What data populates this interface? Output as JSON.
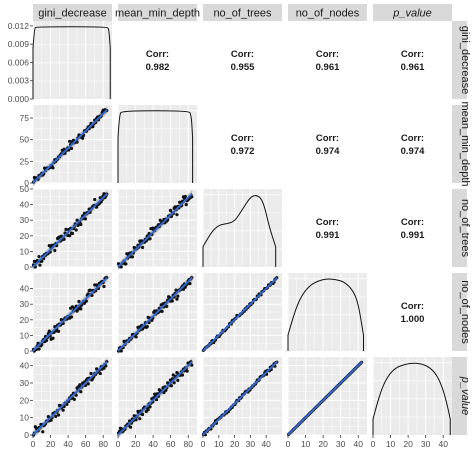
{
  "chart_data": {
    "type": "scatter-matrix",
    "variables": [
      "gini_decrease",
      "mean_min_depth",
      "no_of_trees",
      "no_of_nodes",
      "p_value"
    ],
    "variable_italic": [
      false,
      false,
      false,
      false,
      true
    ],
    "x_ranges": [
      [
        0,
        90
      ],
      [
        0,
        90
      ],
      [
        0,
        50
      ],
      [
        0,
        45
      ],
      [
        0,
        45
      ]
    ],
    "x_ticks": [
      [
        0,
        20,
        40,
        60,
        80
      ],
      [
        0,
        20,
        40,
        60,
        80
      ],
      [
        0,
        10,
        20,
        30,
        40
      ],
      [
        0,
        10,
        20,
        30,
        40
      ],
      [
        0,
        10,
        20,
        30,
        40
      ]
    ],
    "x_tick_labels": [
      [
        "0",
        "20",
        "40",
        "60",
        "80"
      ],
      [
        "0",
        "20",
        "40",
        "60",
        "80"
      ],
      [
        "0",
        "10",
        "20",
        "30",
        "40"
      ],
      [
        "0",
        "10",
        "20",
        "30",
        "40"
      ],
      [
        "0",
        "10",
        "20",
        "30",
        "40"
      ]
    ],
    "y_ranges": [
      [
        0,
        0.0128
      ],
      [
        0,
        90
      ],
      [
        0,
        50
      ],
      [
        0,
        50
      ],
      [
        0,
        45
      ]
    ],
    "y_ticks": [
      [
        0.0,
        0.003,
        0.006,
        0.009,
        0.012
      ],
      [
        0,
        25,
        50,
        75
      ],
      [
        0,
        10,
        20,
        30,
        40,
        50
      ],
      [
        0,
        10,
        20,
        30,
        40
      ],
      [
        0,
        10,
        20,
        30,
        40
      ]
    ],
    "y_tick_labels": [
      [
        "0.000",
        "0.003",
        "0.006",
        "0.009",
        "0.012"
      ],
      [
        "0",
        "25",
        "50",
        "75"
      ],
      [
        "0",
        "10",
        "20",
        "30",
        "40",
        "50"
      ],
      [
        "0",
        "10",
        "20",
        "30",
        "40"
      ],
      [
        "0",
        "10",
        "20",
        "30",
        "40"
      ]
    ],
    "correlations": [
      {
        "row": 0,
        "col": 1,
        "label": "Corr:",
        "value": "0.982"
      },
      {
        "row": 0,
        "col": 2,
        "label": "Corr:",
        "value": "0.955"
      },
      {
        "row": 0,
        "col": 3,
        "label": "Corr:",
        "value": "0.961"
      },
      {
        "row": 0,
        "col": 4,
        "label": "Corr:",
        "value": "0.961"
      },
      {
        "row": 1,
        "col": 2,
        "label": "Corr:",
        "value": "0.972"
      },
      {
        "row": 1,
        "col": 3,
        "label": "Corr:",
        "value": "0.974"
      },
      {
        "row": 1,
        "col": 4,
        "label": "Corr:",
        "value": "0.974"
      },
      {
        "row": 2,
        "col": 3,
        "label": "Corr:",
        "value": "0.991"
      },
      {
        "row": 2,
        "col": 4,
        "label": "Corr:",
        "value": "0.991"
      },
      {
        "row": 3,
        "col": 4,
        "label": "Corr:",
        "value": "1.000"
      }
    ],
    "densities": [
      {
        "var": "gini_decrease",
        "shape": [
          [
            0,
            0.7
          ],
          [
            1.5,
            0.98
          ],
          [
            4,
            1
          ],
          [
            84,
            1
          ],
          [
            86.5,
            0.97
          ],
          [
            88,
            0.7
          ]
        ]
      },
      {
        "var": "mean_min_depth",
        "shape": [
          [
            0,
            0.62
          ],
          [
            1.5,
            0.95
          ],
          [
            5,
            1
          ],
          [
            80,
            1
          ],
          [
            83.5,
            0.95
          ],
          [
            85,
            0.62
          ]
        ]
      },
      {
        "var": "no_of_trees",
        "shape": [
          [
            0,
            0.28
          ],
          [
            5,
            0.48
          ],
          [
            10,
            0.58
          ],
          [
            15,
            0.6
          ],
          [
            20,
            0.63
          ],
          [
            25,
            0.8
          ],
          [
            30,
            0.97
          ],
          [
            34,
            1
          ],
          [
            38,
            0.92
          ],
          [
            42,
            0.55
          ],
          [
            46,
            0.28
          ]
        ]
      },
      {
        "var": "no_of_nodes",
        "shape": [
          [
            0,
            0.22
          ],
          [
            3,
            0.48
          ],
          [
            7,
            0.74
          ],
          [
            12,
            0.9
          ],
          [
            17,
            0.97
          ],
          [
            22,
            1
          ],
          [
            27,
            0.99
          ],
          [
            32,
            0.96
          ],
          [
            37,
            0.84
          ],
          [
            40,
            0.66
          ],
          [
            43,
            0.22
          ]
        ]
      },
      {
        "var": "p_value",
        "shape": [
          [
            0,
            0.22
          ],
          [
            3,
            0.5
          ],
          [
            7,
            0.76
          ],
          [
            12,
            0.92
          ],
          [
            18,
            0.98
          ],
          [
            24,
            1
          ],
          [
            30,
            0.97
          ],
          [
            35,
            0.88
          ],
          [
            39,
            0.7
          ],
          [
            42,
            0.45
          ],
          [
            44,
            0.22
          ]
        ]
      }
    ],
    "grid": true,
    "background": "#ebebeb",
    "strip_background": "#d9d9d9",
    "point_color": "#111111",
    "line_color": "#3366cc",
    "band_color": "#9a9a9a"
  }
}
